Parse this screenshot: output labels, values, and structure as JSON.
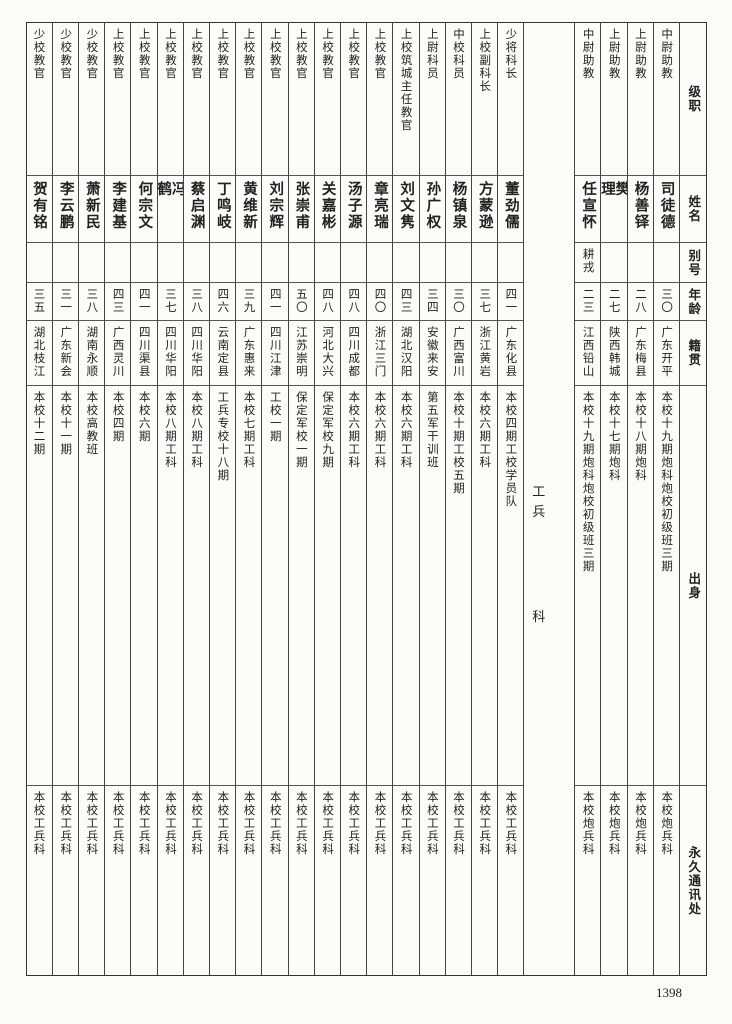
{
  "headers": {
    "rank": "级职",
    "name": "姓名",
    "alias": "别号",
    "age": "年龄",
    "origin": "籍贯",
    "education": "出身",
    "address": "永久通讯处"
  },
  "group_artillery": [
    {
      "rank": "中尉助教",
      "name": "司徒德",
      "alias": "",
      "age": "三〇",
      "origin": "广东开平",
      "education": "本校十九期炮科炮校初级班三期",
      "address": "本校炮兵科"
    },
    {
      "rank": "上尉助教",
      "name": "杨善铎",
      "alias": "",
      "age": "二八",
      "origin": "广东梅县",
      "education": "本校十八期炮科",
      "address": "本校炮兵科"
    },
    {
      "rank": "上尉助教",
      "name": "樊理",
      "alias": "",
      "age": "二七",
      "origin": "陕西韩城",
      "education": "本校十七期炮科",
      "address": "本校炮兵科"
    },
    {
      "rank": "中尉助教",
      "name": "任宣怀",
      "alias": "耕戎",
      "age": "二三",
      "origin": "江西铅山",
      "education": "本校十九期炮科炮校初级班三期",
      "address": "本校炮兵科"
    }
  ],
  "section_label": [
    "工",
    "兵",
    "科"
  ],
  "group_engineering": [
    {
      "rank": "少将科长",
      "name": "董劲儒",
      "alias": "",
      "age": "四一",
      "origin": "广东化县",
      "education": "本校四期工校学员队",
      "address": "本校工兵科"
    },
    {
      "rank": "上校副科长",
      "name": "方蒙逊",
      "alias": "",
      "age": "三七",
      "origin": "浙江黄岩",
      "education": "本校六期工科",
      "address": "本校工兵科"
    },
    {
      "rank": "中校科员",
      "name": "杨镇泉",
      "alias": "",
      "age": "三〇",
      "origin": "广西富川",
      "education": "本校十期工校五期",
      "address": "本校工兵科"
    },
    {
      "rank": "上尉科员",
      "name": "孙广权",
      "alias": "",
      "age": "三四",
      "origin": "安徽来安",
      "education": "第五军干训班",
      "address": "本校工兵科"
    },
    {
      "rank": "上校筑城主任教官",
      "name": "刘文隽",
      "alias": "",
      "age": "四三",
      "origin": "湖北汉阳",
      "education": "本校六期工科",
      "address": "本校工兵科"
    },
    {
      "rank": "上校教官",
      "name": "章亮瑞",
      "alias": "",
      "age": "四〇",
      "origin": "浙江三门",
      "education": "本校六期工科",
      "address": "本校工兵科"
    },
    {
      "rank": "上校教官",
      "name": "汤子源",
      "alias": "",
      "age": "四八",
      "origin": "四川成都",
      "education": "本校六期工科",
      "address": "本校工兵科"
    },
    {
      "rank": "上校教官",
      "name": "关嘉彬",
      "alias": "",
      "age": "四八",
      "origin": "河北大兴",
      "education": "保定军校九期",
      "address": "本校工兵科"
    },
    {
      "rank": "上校教官",
      "name": "张崇甫",
      "alias": "",
      "age": "五〇",
      "origin": "江苏崇明",
      "education": "保定军校一期",
      "address": "本校工兵科"
    },
    {
      "rank": "上校教官",
      "name": "刘宗辉",
      "alias": "",
      "age": "四一",
      "origin": "四川江津",
      "education": "工校一期",
      "address": "本校工兵科"
    },
    {
      "rank": "上校教官",
      "name": "黄维新",
      "alias": "",
      "age": "三九",
      "origin": "广东惠来",
      "education": "本校七期工科",
      "address": "本校工兵科"
    },
    {
      "rank": "上校教官",
      "name": "丁鸣岐",
      "alias": "",
      "age": "四六",
      "origin": "云南定县",
      "education": "工兵专校十八期",
      "address": "本校工兵科"
    },
    {
      "rank": "上校教官",
      "name": "蔡启渊",
      "alias": "",
      "age": "三八",
      "origin": "四川华阳",
      "education": "本校八期工科",
      "address": "本校工兵科"
    },
    {
      "rank": "上校教官",
      "name": "冯鹤",
      "alias": "",
      "age": "三七",
      "origin": "四川华阳",
      "education": "本校八期工科",
      "address": "本校工兵科"
    },
    {
      "rank": "上校教官",
      "name": "何宗文",
      "alias": "",
      "age": "四一",
      "origin": "四川渠县",
      "education": "本校六期",
      "address": "本校工兵科"
    },
    {
      "rank": "上校教官",
      "name": "李建基",
      "alias": "",
      "age": "四三",
      "origin": "广西灵川",
      "education": "本校四期",
      "address": "本校工兵科"
    },
    {
      "rank": "少校教官",
      "name": "萧新民",
      "alias": "",
      "age": "三八",
      "origin": "湖南永顺",
      "education": "本校高教班",
      "address": "本校工兵科"
    },
    {
      "rank": "少校教官",
      "name": "李云鹏",
      "alias": "",
      "age": "三一",
      "origin": "广东新会",
      "education": "本校十一期",
      "address": "本校工兵科"
    },
    {
      "rank": "少校教官",
      "name": "贺有铭",
      "alias": "",
      "age": "三五",
      "origin": "湖北枝江",
      "education": "本校十二期",
      "address": "本校工兵科"
    }
  ],
  "page_number": "1398"
}
